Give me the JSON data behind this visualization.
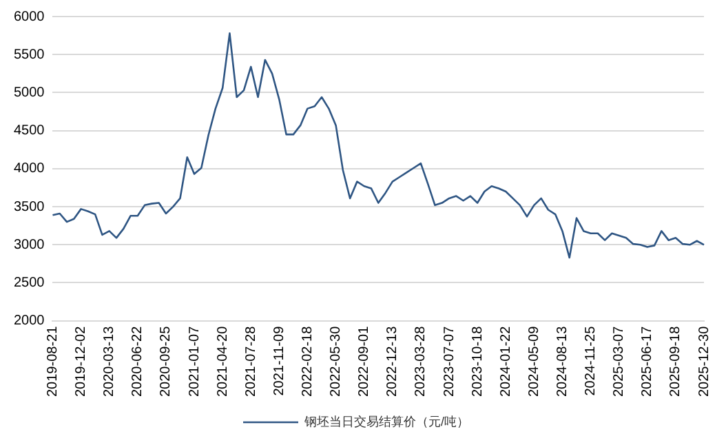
{
  "chart_data": {
    "type": "line",
    "categories": [
      "2019-08-21",
      null,
      null,
      null,
      "2019-12-02",
      null,
      null,
      null,
      "2020-03-13",
      null,
      null,
      null,
      "2020-06-22",
      null,
      null,
      null,
      "2020-09-25",
      null,
      null,
      null,
      "2021-01-07",
      null,
      null,
      null,
      "2021-04-20",
      null,
      null,
      null,
      "2021-07-28",
      null,
      null,
      null,
      "2021-11-09",
      null,
      null,
      null,
      "2022-02-18",
      null,
      null,
      null,
      "2022-05-30",
      null,
      null,
      null,
      "2022-09-01",
      null,
      null,
      null,
      "2022-12-13",
      null,
      null,
      null,
      "2023-03-28",
      null,
      null,
      null,
      "2023-07-07",
      null,
      null,
      null,
      "2023-10-18",
      null,
      null,
      null,
      "2024-01-22",
      null,
      null,
      null,
      "2024-05-09",
      null,
      null,
      null,
      "2024-08-13",
      null,
      null,
      null,
      "2024-11-25",
      null,
      null,
      null,
      "2025-03-07",
      null,
      null,
      null,
      "2025-06-17",
      null,
      null,
      null,
      "2025-09-18",
      null,
      null,
      null,
      "2025-12-30"
    ],
    "series": [
      {
        "name": "钢坯当日交易结算价（元/吨）",
        "color": "#2e5583",
        "values": [
          3390,
          3410,
          3300,
          3340,
          3470,
          3440,
          3400,
          3130,
          3180,
          3090,
          3210,
          3380,
          3380,
          3520,
          3540,
          3550,
          3410,
          3500,
          3610,
          4150,
          3930,
          4010,
          4440,
          4790,
          5060,
          5780,
          4940,
          5030,
          5340,
          4940,
          5430,
          5250,
          4910,
          4450,
          4450,
          4570,
          4790,
          4820,
          4940,
          4790,
          4570,
          3980,
          3610,
          3830,
          3770,
          3740,
          3550,
          3680,
          3830,
          3890,
          3950,
          4010,
          4070,
          3800,
          3520,
          3550,
          3610,
          3640,
          3580,
          3640,
          3550,
          3700,
          3770,
          3740,
          3700,
          3610,
          3520,
          3370,
          3520,
          3610,
          3460,
          3400,
          3180,
          2830,
          3350,
          3180,
          3150,
          3150,
          3060,
          3150,
          3120,
          3090,
          3010,
          3000,
          2970,
          2990,
          3180,
          3060,
          3090,
          3010,
          3000,
          3050,
          3000
        ]
      }
    ],
    "ylim": [
      2000,
      6000
    ],
    "yticks": [
      2000,
      2500,
      3000,
      3500,
      4000,
      4500,
      5000,
      5500,
      6000
    ],
    "grid": "y",
    "legend": "bottom",
    "marker": "none",
    "line_style": "solid"
  }
}
